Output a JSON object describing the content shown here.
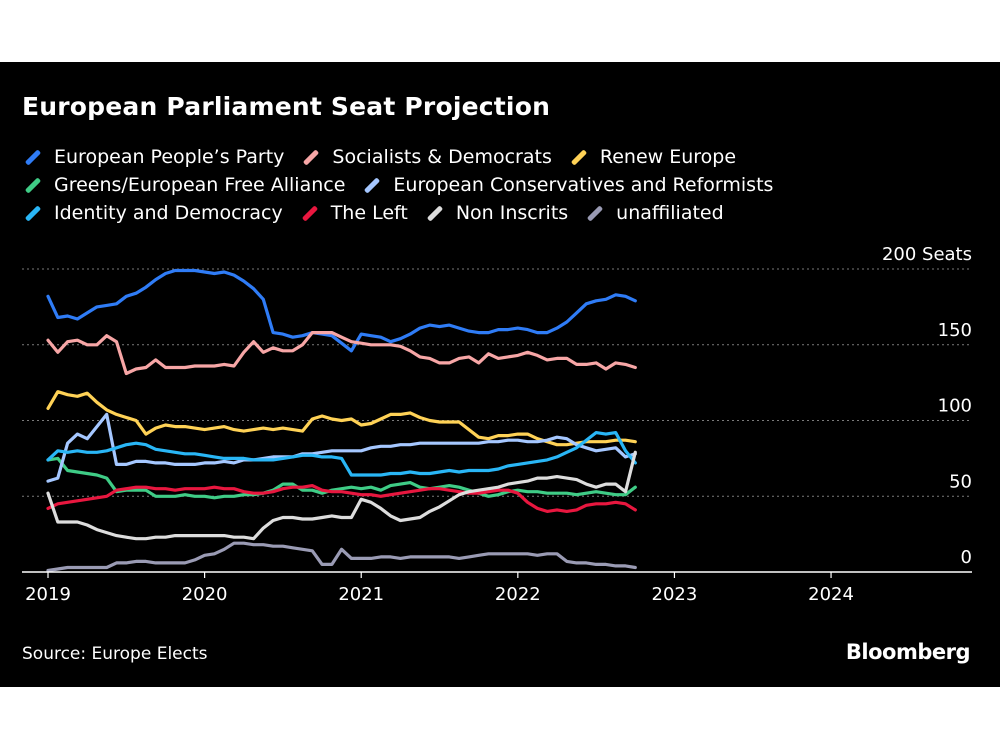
{
  "chart_data": {
    "type": "line",
    "title": "European Parliament Seat Projection",
    "ylabel": "Seats",
    "ylim": [
      0,
      200
    ],
    "yticks": [
      {
        "value": 200,
        "label": "200 Seats"
      },
      {
        "value": 150,
        "label": "150"
      },
      {
        "value": 100,
        "label": "100"
      },
      {
        "value": 50,
        "label": "50"
      },
      {
        "value": 0,
        "label": "0"
      }
    ],
    "xlim": [
      2019.0,
      2024.9
    ],
    "xticks": [
      {
        "value": 2019.0,
        "label": "2019"
      },
      {
        "value": 2020.0,
        "label": "2020"
      },
      {
        "value": 2021.0,
        "label": "2021"
      },
      {
        "value": 2022.0,
        "label": "2022"
      },
      {
        "value": 2023.0,
        "label": "2023"
      },
      {
        "value": 2024.0,
        "label": "2024"
      }
    ],
    "x_start": 2019.0,
    "x_step": 0.0625,
    "series": [
      {
        "name": "European People’s Party",
        "color": "#2f7cf6",
        "values": [
          182,
          168,
          169,
          167,
          171,
          175,
          176,
          177,
          182,
          184,
          188,
          193,
          197,
          199,
          199,
          199,
          198,
          197,
          198,
          196,
          192,
          187,
          180,
          158,
          157,
          155,
          156,
          158,
          157,
          156,
          151,
          146,
          157,
          156,
          155,
          152,
          154,
          157,
          161,
          163,
          162,
          163,
          161,
          159,
          158,
          158,
          160,
          160,
          161,
          160,
          158,
          158,
          161,
          165,
          171,
          177,
          179,
          180,
          183,
          182,
          179
        ]
      },
      {
        "name": "Socialists & Democrats",
        "color": "#f7a6a6",
        "values": [
          153,
          145,
          152,
          153,
          150,
          150,
          156,
          152,
          131,
          134,
          135,
          140,
          135,
          135,
          135,
          136,
          136,
          136,
          137,
          136,
          145,
          152,
          145,
          148,
          146,
          146,
          150,
          158,
          158,
          158,
          155,
          152,
          151,
          150,
          150,
          150,
          149,
          146,
          142,
          141,
          138,
          138,
          141,
          142,
          138,
          144,
          141,
          142,
          143,
          145,
          143,
          140,
          141,
          141,
          137,
          137,
          138,
          134,
          138,
          137,
          135
        ]
      },
      {
        "name": "Renew Europe",
        "color": "#ffd256",
        "values": [
          108,
          119,
          117,
          116,
          118,
          112,
          107,
          104,
          102,
          100,
          91,
          95,
          97,
          96,
          96,
          95,
          94,
          95,
          96,
          94,
          93,
          94,
          95,
          94,
          95,
          94,
          93,
          101,
          103,
          101,
          100,
          101,
          97,
          98,
          101,
          104,
          104,
          105,
          102,
          100,
          99,
          99,
          99,
          94,
          89,
          88,
          90,
          90,
          91,
          91,
          88,
          86,
          84,
          84,
          85,
          86,
          86,
          86,
          87,
          87,
          86
        ]
      },
      {
        "name": "Greens/European Free Alliance",
        "color": "#3fcc86",
        "values": [
          74,
          75,
          67,
          66,
          65,
          64,
          62,
          53,
          54,
          54,
          54,
          50,
          50,
          50,
          51,
          50,
          50,
          49,
          50,
          50,
          51,
          51,
          52,
          54,
          58,
          58,
          54,
          54,
          52,
          54,
          55,
          56,
          55,
          56,
          54,
          57,
          58,
          59,
          56,
          55,
          56,
          57,
          56,
          54,
          52,
          50,
          51,
          53,
          54,
          53,
          53,
          52,
          52,
          52,
          51,
          52,
          53,
          52,
          51,
          51,
          56
        ]
      },
      {
        "name": "European Conservatives and Reformists",
        "color": "#a5c7ff",
        "values": [
          60,
          62,
          85,
          91,
          88,
          96,
          104,
          71,
          71,
          73,
          73,
          72,
          72,
          71,
          71,
          71,
          72,
          72,
          73,
          72,
          74,
          74,
          75,
          76,
          76,
          76,
          78,
          78,
          79,
          80,
          80,
          80,
          80,
          82,
          83,
          83,
          84,
          84,
          85,
          85,
          85,
          85,
          85,
          85,
          85,
          86,
          86,
          87,
          87,
          86,
          86,
          87,
          89,
          88,
          84,
          82,
          80,
          81,
          82,
          76,
          78
        ]
      },
      {
        "name": "Identity and Democracy",
        "color": "#29b6f6",
        "values": [
          74,
          80,
          79,
          80,
          79,
          79,
          80,
          82,
          84,
          85,
          84,
          81,
          80,
          79,
          78,
          78,
          77,
          76,
          75,
          75,
          75,
          74,
          74,
          74,
          75,
          76,
          77,
          77,
          76,
          76,
          75,
          64,
          64,
          64,
          64,
          65,
          65,
          66,
          65,
          65,
          66,
          67,
          66,
          67,
          67,
          67,
          68,
          70,
          71,
          72,
          73,
          74,
          76,
          79,
          82,
          87,
          92,
          91,
          92,
          80,
          72
        ]
      },
      {
        "name": "The Left",
        "color": "#e8173f",
        "values": [
          42,
          45,
          46,
          47,
          48,
          49,
          50,
          54,
          55,
          56,
          56,
          55,
          55,
          54,
          55,
          55,
          55,
          56,
          55,
          55,
          53,
          52,
          52,
          53,
          55,
          56,
          56,
          57,
          54,
          53,
          53,
          52,
          51,
          51,
          50,
          51,
          52,
          53,
          54,
          55,
          55,
          54,
          53,
          52,
          52,
          53,
          54,
          54,
          52,
          46,
          42,
          40,
          41,
          40,
          41,
          44,
          45,
          45,
          46,
          45,
          41
        ]
      },
      {
        "name": "Non Inscrits",
        "color": "#dddddd",
        "values": [
          52,
          33,
          33,
          33,
          31,
          28,
          26,
          24,
          23,
          22,
          22,
          23,
          23,
          24,
          24,
          24,
          24,
          24,
          24,
          23,
          23,
          22,
          29,
          34,
          36,
          36,
          35,
          35,
          36,
          37,
          36,
          36,
          48,
          46,
          42,
          37,
          34,
          35,
          36,
          40,
          43,
          47,
          51,
          53,
          54,
          55,
          56,
          58,
          59,
          60,
          62,
          62,
          63,
          62,
          61,
          58,
          56,
          58,
          58,
          53,
          79
        ]
      },
      {
        "name": "unaffiliated",
        "color": "#9a9bb4",
        "values": [
          1,
          2,
          3,
          3,
          3,
          3,
          3,
          6,
          6,
          7,
          7,
          6,
          6,
          6,
          6,
          8,
          11,
          12,
          15,
          19,
          19,
          18,
          18,
          17,
          17,
          16,
          15,
          14,
          5,
          5,
          15,
          9,
          9,
          9,
          10,
          10,
          9,
          10,
          10,
          10,
          10,
          10,
          9,
          10,
          11,
          12,
          12,
          12,
          12,
          12,
          11,
          12,
          12,
          7,
          6,
          6,
          5,
          5,
          4,
          4,
          3
        ]
      }
    ],
    "legend_rows": [
      [
        "European People’s Party",
        "Socialists & Democrats",
        "Renew Europe"
      ],
      [
        "Greens/European Free Alliance",
        "European Conservatives and Reformists"
      ],
      [
        "Identity and Democracy",
        "The Left",
        "Non Inscrits",
        "unaffiliated"
      ]
    ],
    "source": "Source: Europe Elects",
    "brand": "Bloomberg"
  }
}
